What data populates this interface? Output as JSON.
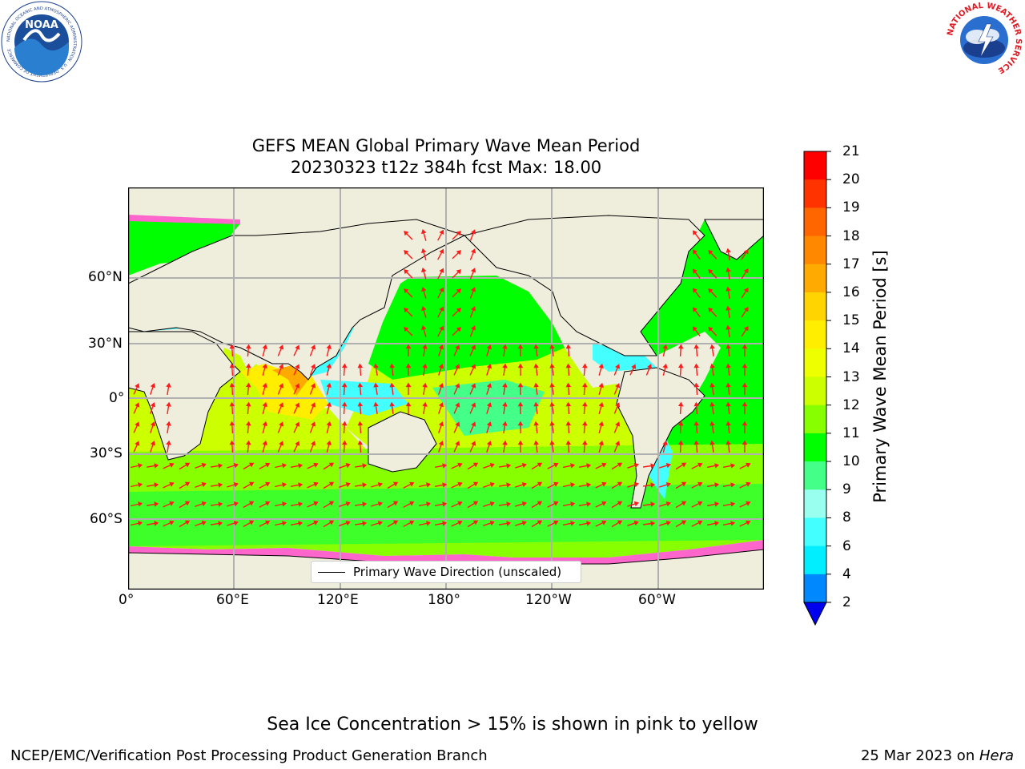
{
  "logos": {
    "noaa": {
      "center_text": "NOAA",
      "ring_text": "NATIONAL OCEANIC AND ATMOSPHERIC ADMINISTRATION · U.S. DEPARTMENT OF COMMERCE"
    },
    "nws": {
      "ring_text": "NATIONAL WEATHER SERVICE"
    }
  },
  "title": {
    "line1": "GEFS MEAN Global Primary Wave Mean Period",
    "line2": "20230323 t12z 384h fcst   Max: 18.00"
  },
  "map": {
    "x_ticks": [
      "0°",
      "60°E",
      "120°E",
      "180°",
      "120°W",
      "60°W"
    ],
    "y_ticks": [
      "60°N",
      "30°N",
      "0°",
      "30°S",
      "60°S"
    ],
    "legend_label": "Primary Wave Direction (unscaled)",
    "colors": {
      "land": "#efeddc",
      "coast": "#000000",
      "grid": "#b0b0b0",
      "arrow": "#ff1a1a",
      "ice": "#ff66cc"
    }
  },
  "colorbar": {
    "label": "Primary Wave Mean Period [s]",
    "ticks": [
      "21",
      "20",
      "19",
      "18",
      "17",
      "16",
      "15",
      "14",
      "13",
      "12",
      "11",
      "10",
      "9",
      "8",
      "6",
      "4",
      "2"
    ],
    "colors": [
      "#ff0000",
      "#ff3300",
      "#ff6600",
      "#ff8800",
      "#ffaa00",
      "#ffd400",
      "#ffee00",
      "#eeff00",
      "#ccff00",
      "#88ff00",
      "#00ff00",
      "#44ff88",
      "#99ffee",
      "#44ffff",
      "#00eeff",
      "#0088ff"
    ],
    "extend_color": "#0000ee"
  },
  "notes": {
    "ice": "Sea Ice Concentration > 15% is shown in pink to yellow",
    "left": "NCEP/EMC/Verification Post Processing Product Generation Branch",
    "date": "25 Mar 2023 on ",
    "host": "Hera"
  }
}
